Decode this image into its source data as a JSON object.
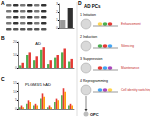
{
  "panel_labels": [
    "A",
    "B",
    "C",
    "D"
  ],
  "chart_data": [
    {
      "type": "bar",
      "categories": [
        null,
        null
      ],
      "values": [
        1,
        2.5
      ],
      "colors": [
        "#9a9a9a",
        "#303030"
      ],
      "ylim": [
        0,
        3
      ],
      "yticks": [
        0,
        1,
        2,
        3
      ]
    },
    {
      "type": "bar",
      "title": "AD",
      "categories": [
        null,
        null,
        null,
        null,
        null,
        null,
        null,
        null
      ],
      "series": [
        {
          "color": "#4caf50",
          "values": [
            2,
            10,
            6,
            14,
            3,
            8,
            12,
            5
          ]
        },
        {
          "color": "#e53935",
          "values": [
            4,
            12,
            9,
            16,
            6,
            10,
            15,
            7
          ]
        }
      ],
      "ylim": [
        0,
        20
      ],
      "yticks": [
        0,
        10,
        20
      ]
    },
    {
      "type": "bar",
      "title": "PLGM3/1 hAD",
      "categories": [
        null,
        null,
        null,
        null,
        null,
        null,
        null,
        null
      ],
      "series": [
        {
          "color": "#4caf50",
          "values": [
            1,
            3,
            2,
            6,
            1,
            4,
            8,
            2
          ]
        },
        {
          "color": "#e53935",
          "values": [
            2,
            5,
            3,
            9,
            2,
            6,
            12,
            3
          ]
        },
        {
          "color": "#ff9800",
          "values": [
            1,
            4,
            2,
            7,
            1,
            5,
            10,
            2
          ]
        }
      ],
      "ylim": [
        0,
        15
      ],
      "yticks": [
        0,
        5,
        10,
        15
      ]
    }
  ],
  "diagram": {
    "header": "AD PCs",
    "footer": "OPC",
    "steps": [
      {
        "number": "1",
        "label": "Initiation",
        "note": "Enhancement"
      },
      {
        "number": "2",
        "label": "Induction",
        "note": "Silencing"
      },
      {
        "number": "3",
        "label": "Suppression",
        "note": "Maintenance"
      },
      {
        "number": "4",
        "label": "Reprogramming",
        "note": "Cell identity switching"
      }
    ]
  }
}
